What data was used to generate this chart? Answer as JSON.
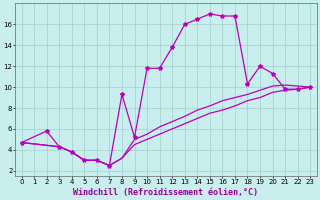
{
  "xlabel": "Windchill (Refroidissement éolien,°C)",
  "bg_color": "#c8eeed",
  "grid_color": "#a0d0d0",
  "line_color": "#bb00bb",
  "markersize": 3,
  "linewidth": 0.9,
  "xlim": [
    -0.5,
    23.5
  ],
  "ylim": [
    1.5,
    18.0
  ],
  "xticks": [
    0,
    1,
    2,
    3,
    4,
    5,
    6,
    7,
    8,
    9,
    10,
    11,
    12,
    13,
    14,
    15,
    16,
    17,
    18,
    19,
    20,
    21,
    22,
    23
  ],
  "yticks": [
    2,
    4,
    6,
    8,
    10,
    12,
    14,
    16
  ],
  "tick_fontsize": 5.0,
  "xlabel_fontsize": 6.0,
  "main_curve": {
    "x": [
      0,
      2,
      3,
      4,
      5,
      6,
      7,
      8,
      9,
      10,
      11,
      12,
      13,
      14,
      15,
      16,
      17,
      18,
      19,
      20,
      21,
      22,
      23
    ],
    "y": [
      4.7,
      5.8,
      4.3,
      3.8,
      3.0,
      3.0,
      2.5,
      9.3,
      5.2,
      11.8,
      11.8,
      13.8,
      16.0,
      16.5,
      17.0,
      16.8,
      16.8,
      10.3,
      12.0,
      11.3,
      9.8,
      9.8,
      10.0
    ]
  },
  "diag_curve1": {
    "x": [
      0,
      3,
      4,
      5,
      6,
      7,
      8,
      9,
      10,
      11,
      12,
      13,
      14,
      15,
      16,
      17,
      18,
      19,
      20,
      21,
      22,
      23
    ],
    "y": [
      4.7,
      4.3,
      3.8,
      3.0,
      3.0,
      2.5,
      3.2,
      4.5,
      5.0,
      5.5,
      6.0,
      6.5,
      7.0,
      7.5,
      7.8,
      8.2,
      8.7,
      9.0,
      9.5,
      9.7,
      9.8,
      10.0
    ]
  },
  "diag_curve2": {
    "x": [
      0,
      3,
      4,
      5,
      6,
      7,
      8,
      9,
      10,
      11,
      12,
      13,
      14,
      15,
      16,
      17,
      18,
      19,
      20,
      21,
      22,
      23
    ],
    "y": [
      4.7,
      4.3,
      3.8,
      3.0,
      3.0,
      2.5,
      3.2,
      5.0,
      5.5,
      6.2,
      6.7,
      7.2,
      7.8,
      8.2,
      8.7,
      9.0,
      9.3,
      9.7,
      10.1,
      10.2,
      10.1,
      10.0
    ]
  }
}
